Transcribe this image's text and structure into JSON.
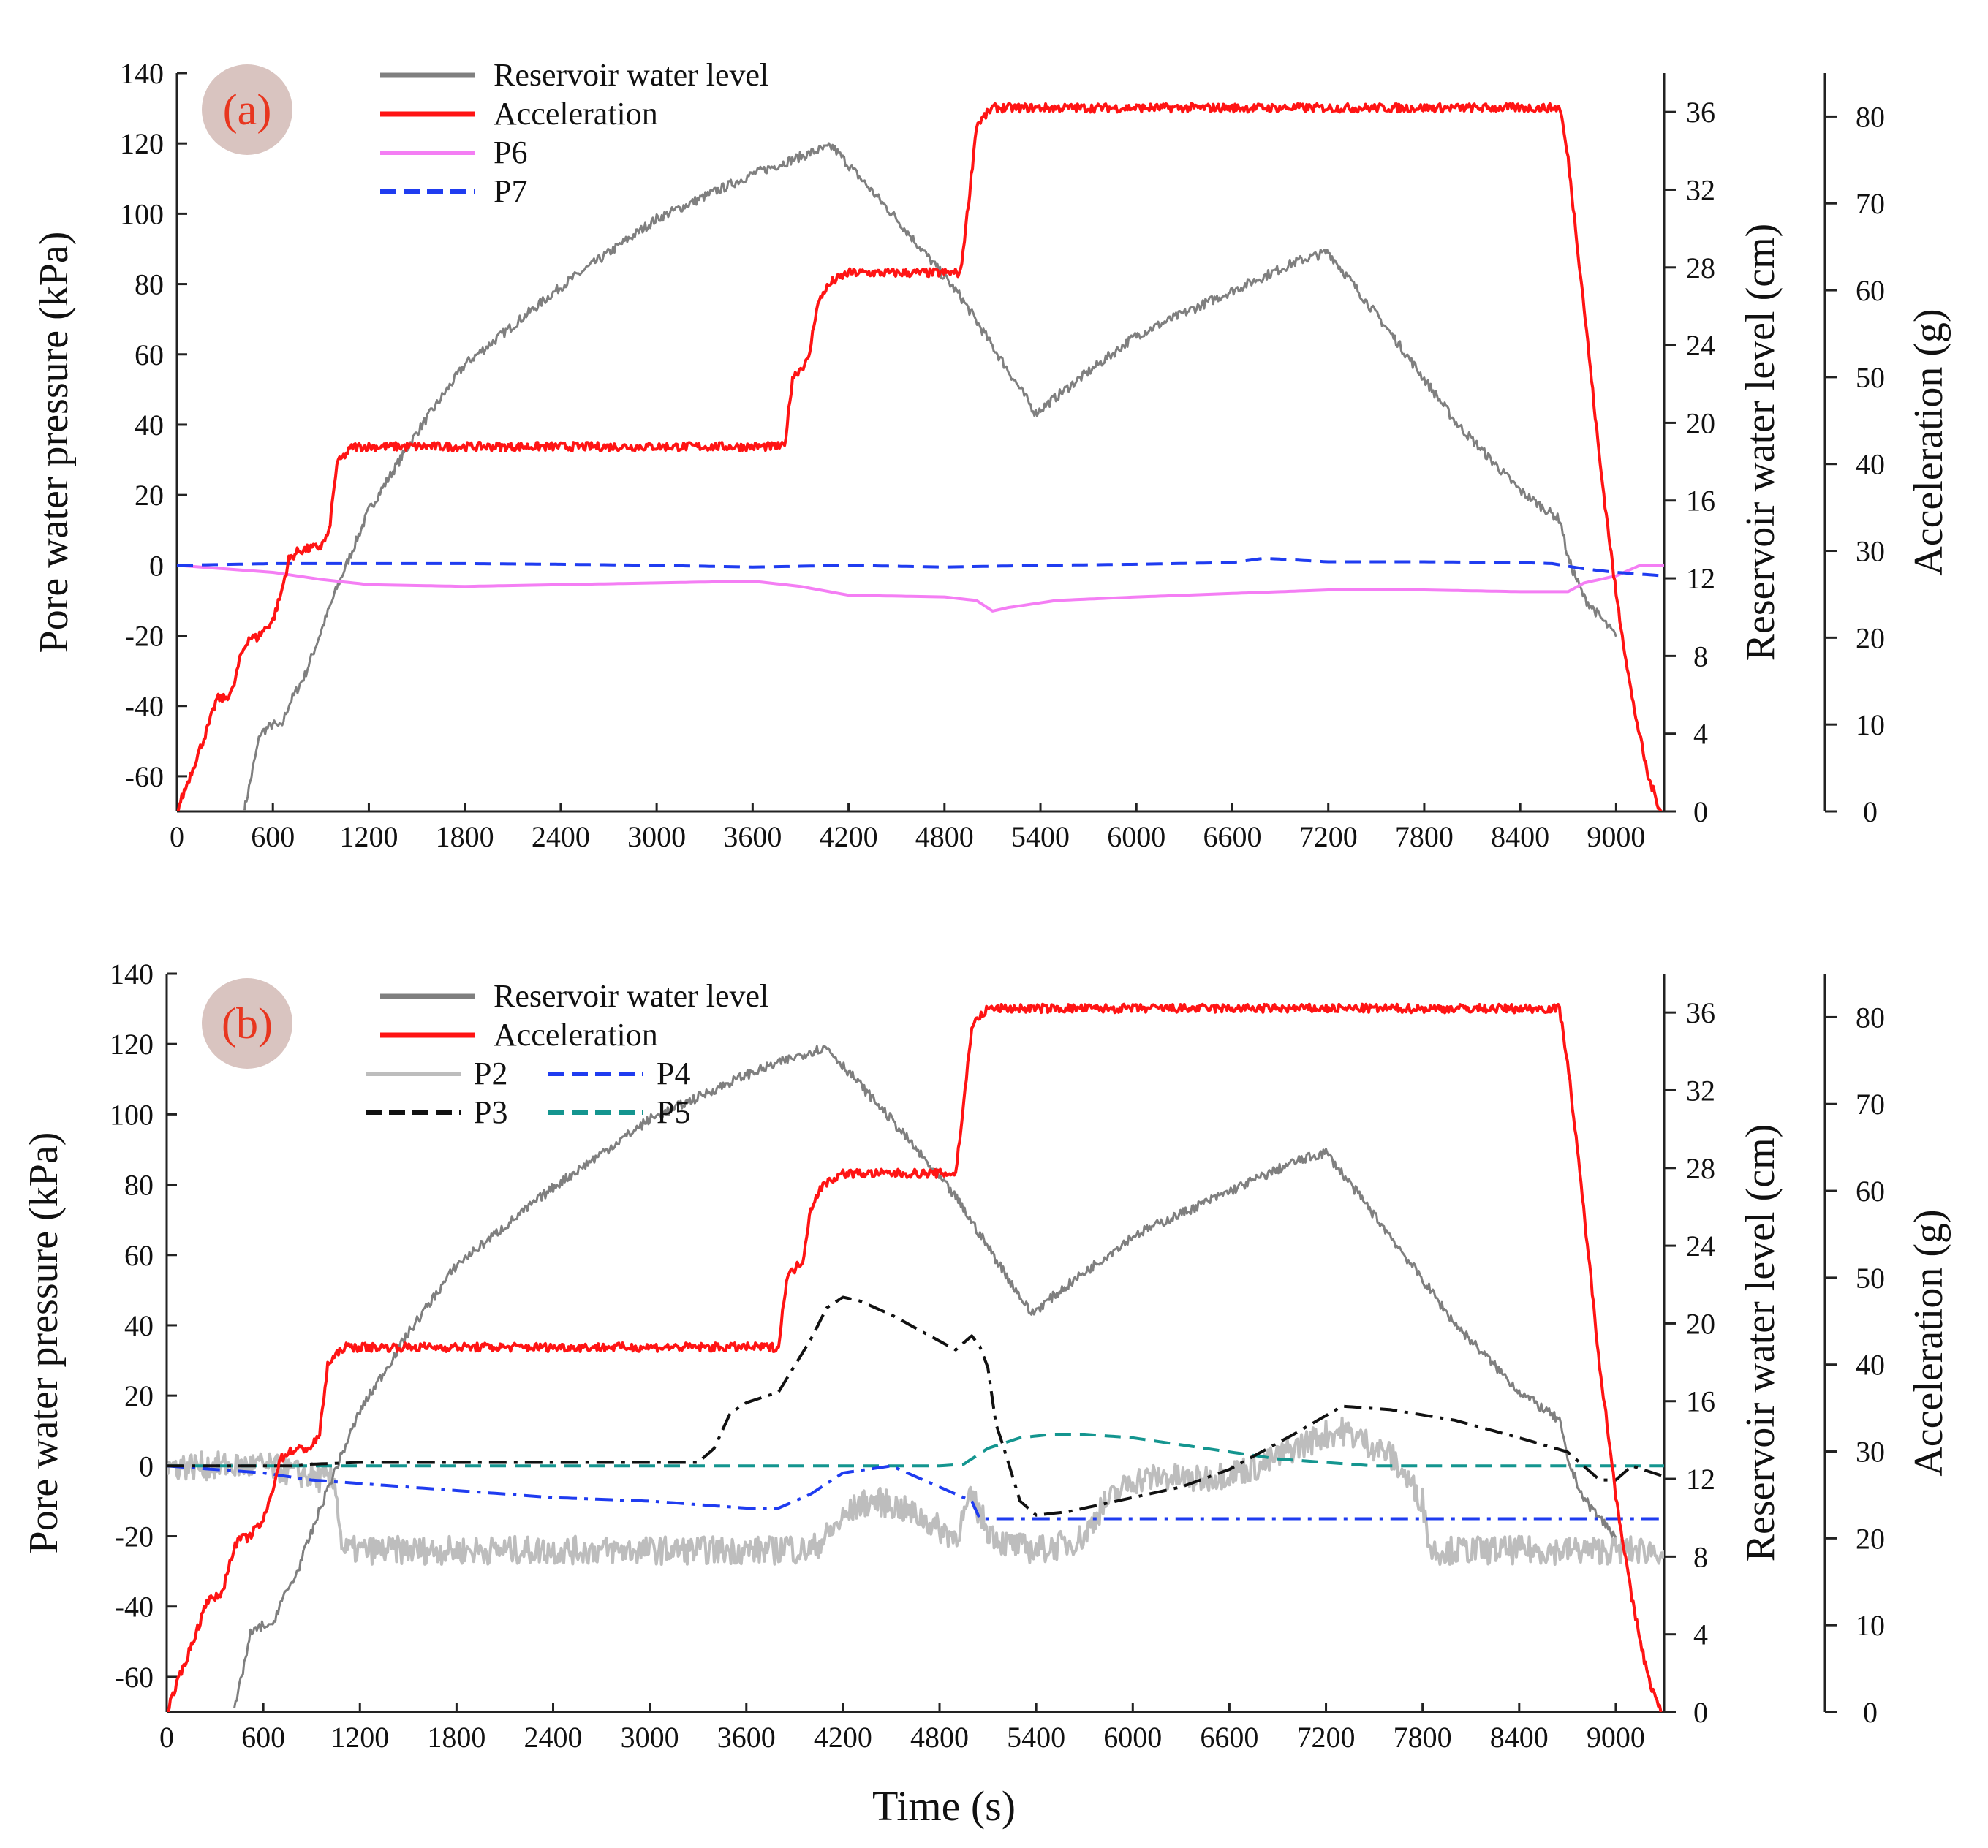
{
  "figure": {
    "xlabel": "Time (s)",
    "xticks": [
      "0",
      "600",
      "1200",
      "1800",
      "2400",
      "3000",
      "3600",
      "4200",
      "4800",
      "5400",
      "6000",
      "6600",
      "7200",
      "7800",
      "8400",
      "9000"
    ]
  },
  "colors": {
    "water": "#7f7f7f",
    "accel": "#ff1414",
    "P6": "#f47ef4",
    "P7": "#1f3cf0",
    "P2": "#bdbdbd",
    "P3": "#111111",
    "P4": "#1f3cf0",
    "P5": "#14958f",
    "badge": "#d9c4c0",
    "badge_text": "#e8361f"
  },
  "chart_data": [
    {
      "type": "line",
      "panel_label": "(a)",
      "xlim": [
        0,
        9300
      ],
      "axes": {
        "left": {
          "label": "Pore water pressure (kPa)",
          "ylim": [
            -70,
            140
          ],
          "ticks": [
            140,
            120,
            100,
            80,
            60,
            40,
            20,
            0,
            -20,
            -40,
            -60
          ]
        },
        "right1": {
          "label": "Reservoir water level (cm)",
          "ylim": [
            0,
            38
          ],
          "ticks": [
            36,
            32,
            28,
            24,
            20,
            16,
            12,
            8,
            4,
            0
          ]
        },
        "right2": {
          "label": "Acceleration (g)",
          "ylim": [
            0,
            85
          ],
          "ticks": [
            80,
            70,
            60,
            50,
            40,
            30,
            20,
            10,
            0
          ]
        }
      },
      "legend": [
        "Reservoir water level",
        "Acceleration",
        "P6",
        "P7"
      ],
      "series": [
        {
          "name": "Reservoir water level",
          "axis": "right1",
          "style": "solid",
          "colorKey": "water",
          "noise": 0.25,
          "x": [
            420,
            520,
            600,
            650,
            700,
            800,
            1000,
            1200,
            1500,
            1800,
            2400,
            3000,
            3600,
            4000,
            4100,
            4500,
            4900,
            5370,
            5600,
            6000,
            6600,
            7000,
            7200,
            7600,
            8000,
            8400,
            8650,
            8700,
            8800,
            9000
          ],
          "y": [
            0,
            4,
            4.5,
            4.3,
            5.5,
            7,
            11.5,
            15.5,
            19.5,
            23,
            27,
            30.5,
            32.8,
            34,
            34.2,
            30.5,
            26.5,
            20.5,
            22,
            24.5,
            26.8,
            28.3,
            28.8,
            24.5,
            20,
            16.5,
            15,
            13,
            11,
            9
          ]
        },
        {
          "name": "Acceleration",
          "axis": "right2",
          "style": "solid",
          "colorKey": "accel",
          "noise": 0.5,
          "x": [
            0,
            100,
            200,
            250,
            300,
            350,
            400,
            450,
            500,
            550,
            600,
            650,
            700,
            760,
            900,
            950,
            1000,
            1050,
            1100,
            1200,
            3800,
            3850,
            3900,
            3950,
            4000,
            4050,
            4100,
            4200,
            4900,
            4950,
            5000,
            5050,
            5100,
            5200,
            8650,
            8700,
            8800,
            8900,
            9000,
            9100,
            9200,
            9280
          ],
          "y": [
            0,
            5,
            10,
            13,
            13,
            14,
            18,
            20,
            20,
            21,
            22,
            25,
            29,
            30,
            30.5,
            32,
            40,
            41,
            42,
            42,
            42,
            50,
            51,
            52,
            58,
            60,
            61,
            62,
            62,
            70,
            79,
            80,
            81,
            81,
            81,
            75,
            58,
            40,
            25,
            13,
            4,
            0
          ]
        },
        {
          "name": "P6",
          "axis": "left",
          "style": "solid",
          "colorKey": "P6",
          "noise": 0,
          "x": [
            0,
            300,
            600,
            900,
            1200,
            1800,
            2400,
            3000,
            3600,
            3900,
            4200,
            4800,
            5000,
            5100,
            5200,
            5500,
            6000,
            6600,
            7200,
            7800,
            8400,
            8700,
            8800,
            9000,
            9150,
            9300
          ],
          "y": [
            0,
            -1,
            -2,
            -4,
            -5.5,
            -6,
            -5.5,
            -5,
            -4.5,
            -6,
            -8.5,
            -9,
            -10,
            -13,
            -12,
            -10,
            -9,
            -8,
            -7,
            -7,
            -7.5,
            -7.5,
            -5,
            -3,
            0,
            0
          ]
        },
        {
          "name": "P7",
          "axis": "left",
          "style": "dash",
          "colorKey": "P7",
          "noise": 0,
          "x": [
            0,
            600,
            1200,
            1800,
            2400,
            3000,
            3600,
            4200,
            4800,
            5400,
            6000,
            6600,
            6800,
            7200,
            7800,
            8400,
            8600,
            8800,
            9000,
            9300
          ],
          "y": [
            0,
            0.5,
            0.5,
            0.5,
            0.3,
            0,
            -0.5,
            0,
            -0.5,
            0,
            0.3,
            0.8,
            2,
            1,
            1,
            0.8,
            0.5,
            -1,
            -2,
            -3
          ]
        }
      ]
    },
    {
      "type": "line",
      "panel_label": "(b)",
      "xlim": [
        0,
        9300
      ],
      "axes": {
        "left": {
          "label": "Pore water pressure (kPa)",
          "ylim": [
            -70,
            140
          ],
          "ticks": [
            140,
            120,
            100,
            80,
            60,
            40,
            20,
            0,
            -20,
            -40,
            -60
          ]
        },
        "right1": {
          "label": "Reservoir water level (cm)",
          "ylim": [
            0,
            38
          ],
          "ticks": [
            36,
            32,
            28,
            24,
            20,
            16,
            12,
            8,
            4,
            0
          ]
        },
        "right2": {
          "label": "Acceleration (g)",
          "ylim": [
            0,
            85
          ],
          "ticks": [
            80,
            70,
            60,
            50,
            40,
            30,
            20,
            10,
            0
          ]
        }
      },
      "legend": [
        "Reservoir water level",
        "Acceleration",
        "P2",
        "P4",
        "P3",
        "P5"
      ],
      "series": [
        {
          "name": "Reservoir water level",
          "axis": "right1",
          "style": "solid",
          "colorKey": "water",
          "noise": 0.25,
          "x": [
            420,
            520,
            600,
            650,
            700,
            800,
            1000,
            1200,
            1500,
            1800,
            2400,
            3000,
            3600,
            4000,
            4100,
            4500,
            4900,
            5370,
            5600,
            6000,
            6600,
            7000,
            7200,
            7600,
            8000,
            8400,
            8650,
            8700,
            8800,
            9000
          ],
          "y": [
            0,
            4,
            4.5,
            4.3,
            5.5,
            7,
            11.5,
            15.5,
            19.5,
            23,
            27,
            30.5,
            32.8,
            34,
            34.2,
            30.5,
            26.5,
            20.5,
            22,
            24.5,
            26.8,
            28.3,
            28.8,
            24.5,
            20,
            16.5,
            15,
            13,
            11,
            9
          ]
        },
        {
          "name": "Acceleration",
          "axis": "right2",
          "style": "solid",
          "colorKey": "accel",
          "noise": 0.5,
          "x": [
            0,
            100,
            200,
            250,
            300,
            350,
            400,
            450,
            500,
            550,
            600,
            650,
            700,
            760,
            900,
            950,
            1000,
            1050,
            1100,
            1200,
            3800,
            3850,
            3900,
            3950,
            4000,
            4050,
            4100,
            4200,
            4900,
            4950,
            5000,
            5050,
            5100,
            5200,
            8650,
            8700,
            8800,
            8900,
            9000,
            9100,
            9200,
            9280
          ],
          "y": [
            0,
            5,
            10,
            13,
            13,
            14,
            18,
            20,
            20,
            21,
            22,
            25,
            29,
            30,
            30.5,
            32,
            40,
            41,
            42,
            42,
            42,
            50,
            51,
            52,
            58,
            60,
            61,
            62,
            62,
            70,
            79,
            80,
            81,
            81,
            81,
            75,
            58,
            40,
            25,
            13,
            4,
            0
          ]
        },
        {
          "name": "P2",
          "axis": "left",
          "style": "solid",
          "colorKey": "P2",
          "noise": 4,
          "x": [
            0,
            600,
            900,
            1050,
            1080,
            1100,
            3800,
            3850,
            3900,
            4000,
            4100,
            4200,
            4300,
            4400,
            4500,
            4600,
            4700,
            4800,
            4900,
            5000,
            5100,
            5200,
            5400,
            5600,
            5700,
            5800,
            6000,
            6200,
            6400,
            6600,
            6800,
            7000,
            7200,
            7300,
            7400,
            7600,
            7800,
            7850,
            7900,
            8000,
            9300
          ],
          "y": [
            0,
            0,
            -3,
            -5,
            -20,
            -24,
            -24,
            -22,
            -24,
            -24,
            -20,
            -15,
            -11,
            -10,
            -11,
            -13,
            -15,
            -18,
            -20,
            -9,
            -18,
            -22,
            -24,
            -22,
            -20,
            -12,
            -4,
            -3,
            -4,
            -2,
            0,
            5,
            9,
            10,
            8,
            3,
            -10,
            -24,
            -24,
            -24,
            -24
          ]
        },
        {
          "name": "P3",
          "axis": "left",
          "style": "dashdot",
          "colorKey": "P3",
          "noise": 0,
          "x": [
            0,
            600,
            800,
            900,
            1200,
            1800,
            2400,
            3000,
            3300,
            3400,
            3500,
            3600,
            3800,
            4000,
            4100,
            4200,
            4300,
            4500,
            4700,
            4900,
            5000,
            5050,
            5100,
            5150,
            5200,
            5300,
            5400,
            5600,
            6000,
            6300,
            6600,
            7000,
            7300,
            7600,
            8000,
            8400,
            8700,
            8900,
            9000,
            9100,
            9300
          ],
          "y": [
            0,
            0,
            0,
            0.5,
            1,
            1,
            1,
            1,
            1,
            5,
            15,
            18,
            21,
            36,
            45,
            48,
            47,
            43,
            38,
            33,
            37,
            34,
            28,
            12,
            5,
            -10,
            -14,
            -13,
            -9,
            -6,
            -1,
            9,
            17,
            16,
            13,
            8,
            4,
            -4,
            -4,
            0,
            -3
          ]
        },
        {
          "name": "P4",
          "axis": "left",
          "style": "dashdot",
          "colorKey": "P4",
          "noise": 0,
          "x": [
            0,
            600,
            900,
            1200,
            1800,
            2400,
            3000,
            3600,
            3800,
            4000,
            4200,
            4500,
            4700,
            4900,
            5000,
            5050,
            5100,
            5300,
            9300
          ],
          "y": [
            0,
            -2,
            -4,
            -5,
            -7,
            -9,
            -10,
            -12,
            -12,
            -8,
            -2,
            0,
            -4,
            -8,
            -10,
            -15,
            -15,
            -15,
            -15
          ]
        },
        {
          "name": "P5",
          "axis": "left",
          "style": "dash",
          "colorKey": "P5",
          "noise": 0,
          "x": [
            0,
            600,
            1200,
            1800,
            2400,
            3000,
            3600,
            4200,
            4800,
            4950,
            5100,
            5300,
            5500,
            5700,
            6000,
            6300,
            6600,
            6900,
            7200,
            7500,
            8000,
            8500,
            9000,
            9200,
            9300
          ],
          "y": [
            0,
            0,
            0,
            0,
            0,
            0,
            0,
            0,
            0,
            0.5,
            5,
            8,
            9,
            9,
            8,
            6,
            4,
            2,
            1,
            0,
            0,
            0,
            0,
            0,
            0
          ]
        }
      ]
    }
  ]
}
